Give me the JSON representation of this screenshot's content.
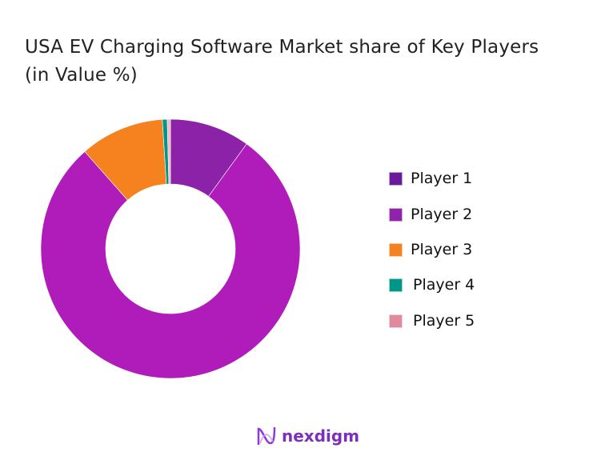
{
  "chart_data": {
    "type": "pie",
    "donut": true,
    "title": "USA EV Charging Software Market share of Key Players (in Value %)",
    "categories": [
      "Player 1",
      "Player 2",
      "Player 3",
      "Player 4",
      "Player 5"
    ],
    "values": [
      10.0,
      78.5,
      10.5,
      0.6,
      0.4
    ],
    "legend_colors": [
      "#6a1b9a",
      "#8e24aa",
      "#f5821f",
      "#009688",
      "#e08aa0"
    ],
    "slice_colors": [
      "#8b22a8",
      "#b01cb9",
      "#f5821f",
      "#009688",
      "#f4b6c2"
    ],
    "legend_position": "right"
  },
  "logo": {
    "text": "nexdigm"
  }
}
